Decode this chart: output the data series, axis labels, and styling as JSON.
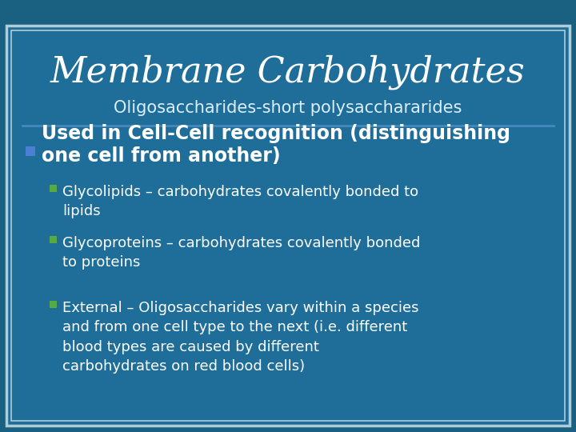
{
  "title": "Membrane Carbohydrates",
  "subtitle": "Oligosaccharides-short polysacchararides",
  "bg_color": "#1e6e99",
  "slide_bg": "#1a6080",
  "outer_border_color": "#b0ccd8",
  "inner_border_color": "#b0ccd8",
  "title_color": "#ffffff",
  "subtitle_color": "#ddeeff",
  "text_color": "#ffffff",
  "divider_color": "#4488bb",
  "bullet1_color": "#4a7fd4",
  "bullet2_color": "#55aa44",
  "main_bullet_line1": "Used in Cell-Cell recognition (distinguishing",
  "main_bullet_line2": "one cell from another)",
  "sub_bullets": [
    "Glycolipids – carbohydrates covalently bonded to\nlipids",
    "Glycoproteins – carbohydrates covalently bonded\nto proteins",
    "External – Oligosaccharides vary within a species\nand from one cell type to the next (i.e. different\nblood types are caused by different\ncarbohydrates on red blood cells)"
  ]
}
